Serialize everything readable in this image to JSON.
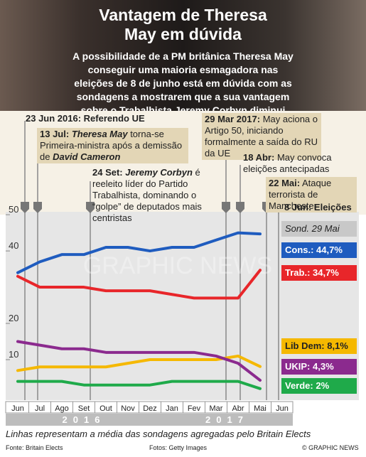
{
  "chart_data": {
    "type": "line",
    "title": "Vantagem de Theresa May em dúvida",
    "subtitle": "A possibilidade de a PM britânica Theresa May conseguir uma maioria esmagadora nas eleições de 8 de junho está em dúvida com as sondagens a mostrarem que a sua vantagem sobre o Trabalhista Jeremy Corbyn diminui",
    "annotations": [
      {
        "date": "23 Jun 2016:",
        "text": "Referendo UE"
      },
      {
        "date": "13 Jul:",
        "parts": [
          "Theresa May",
          " torna-se Primeira-ministra após a demissão de ",
          "David Cameron"
        ]
      },
      {
        "date": "24 Set:",
        "parts": [
          "Jeremy Corbyn",
          " é reeleito líder do Partido Trabalhista, dominando o “golpe” de deputados mais centristas"
        ]
      },
      {
        "date": "29 Mar 2017:",
        "text": "May aciona o Artigo 50, iniciando formalmente a saída do RU da UE"
      },
      {
        "date": "18 Abr:",
        "text": "May convoca eleições antecipadas"
      },
      {
        "date": "22 Mai:",
        "text": "Ataque terrorista de Manchester"
      },
      {
        "date": "8 Jun:",
        "text": "Eleições"
      }
    ],
    "poll_label": "Sond. 29 Mai",
    "categories": [
      "Jun",
      "Jul",
      "Ago",
      "Set",
      "Out",
      "Nov",
      "Dez",
      "Jan",
      "Fev",
      "Mar",
      "Abr",
      "Mai",
      "Jun"
    ],
    "years": [
      "2016",
      "2017"
    ],
    "ylim": [
      0,
      51
    ],
    "yticks": [
      10,
      20,
      40,
      50
    ],
    "series": [
      {
        "name": "Cons.: 44,7%",
        "color": "#1f5cbf",
        "values": [
          34,
          37,
          39,
          39,
          41,
          41,
          40,
          41,
          41,
          43,
          45,
          44.7,
          null
        ]
      },
      {
        "name": "Trab.: 34,7%",
        "color": "#e8262a",
        "values": [
          33,
          30,
          30,
          30,
          29,
          29,
          29,
          28,
          27,
          27,
          27,
          34.7,
          null
        ]
      },
      {
        "name": "Lib Dem: 8,1%",
        "color": "#f5b800",
        "values": [
          7,
          8,
          8,
          8,
          8,
          9,
          10,
          10,
          10,
          10,
          11,
          8.1,
          null
        ]
      },
      {
        "name": "UKIP: 4,3%",
        "color": "#8b2a8e",
        "values": [
          15,
          14,
          13,
          13,
          12,
          12,
          12,
          12,
          12,
          11,
          9,
          4.3,
          null
        ]
      },
      {
        "name": "Verde: 2%",
        "color": "#1faa4a",
        "values": [
          4,
          4,
          4,
          3,
          3,
          3,
          3,
          4,
          4,
          4,
          4,
          2,
          null
        ]
      }
    ],
    "note": "Linhas representam a média das sondagens agregadas pelo Britain Elects",
    "source": "Fonte: Britain Elects",
    "photos": "Fotos: Getty Images",
    "credit": "© GRAPHIC NEWS",
    "watermark": "GRAPHIC NEWS"
  }
}
